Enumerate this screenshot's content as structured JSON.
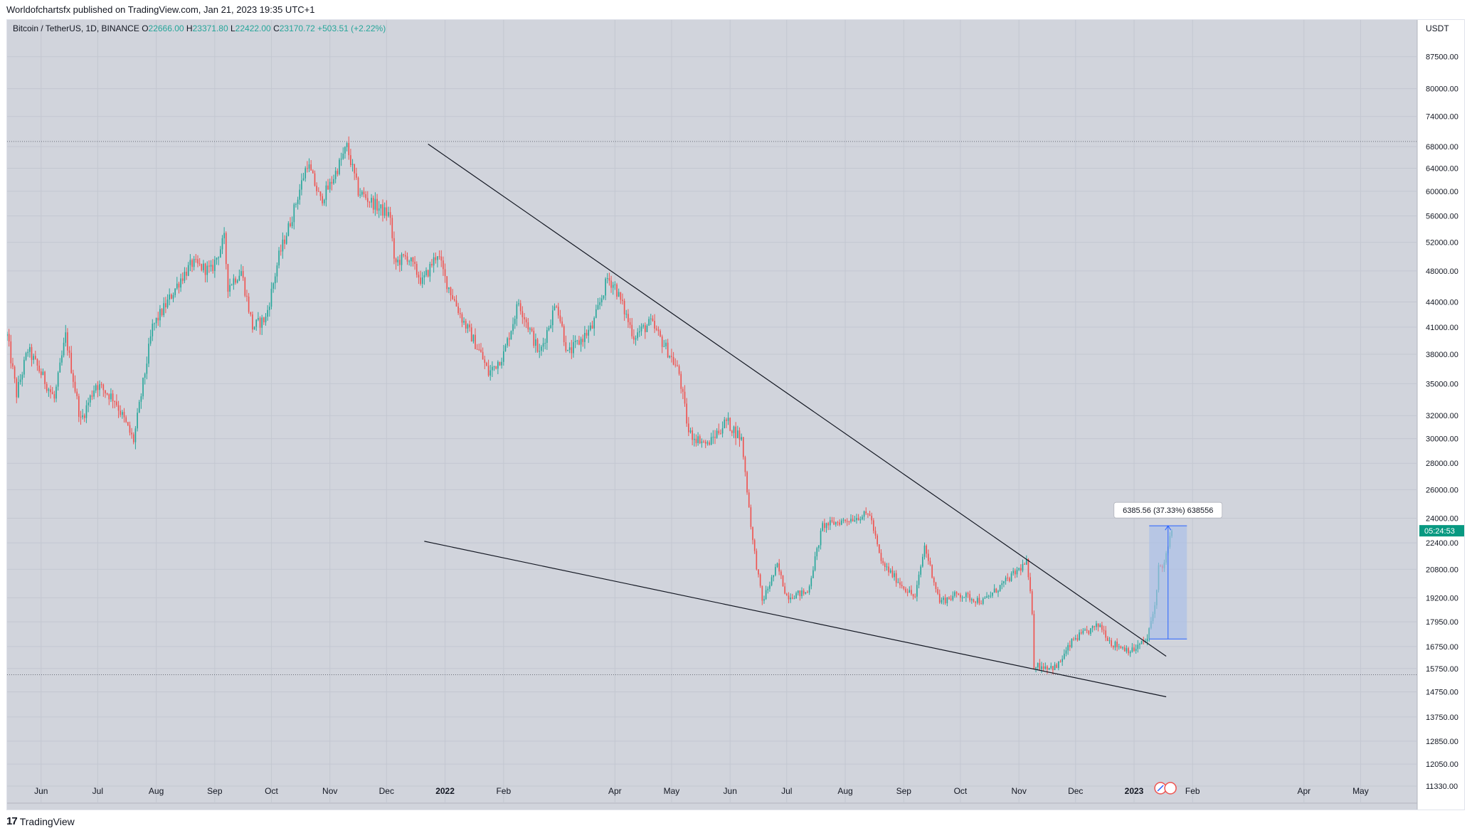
{
  "header": {
    "published_by": "Worldofchartsfx published on TradingView.com, Jan 21, 2023 19:35 UTC+1"
  },
  "footer": {
    "brand": "TradingView",
    "logo_icon": "tradingview-logo-icon"
  },
  "colors": {
    "plot_bg": "#d1d4dc",
    "up": "#26a69a",
    "down": "#ef5350",
    "grid": "#c3c7d1",
    "trendline": "#131722",
    "measure_fill": "#a9bfe8",
    "measure_stroke": "#2962ff",
    "price_label_bg": "#089981"
  },
  "chart_data": {
    "type": "candlestick",
    "symbol_line": {
      "symbol": "Bitcoin / TetherUS, 1D, BINANCE",
      "o_label": "O",
      "open": "22666.00",
      "h_label": "H",
      "high": "23371.80",
      "l_label": "L",
      "low": "22422.00",
      "c_label": "C",
      "close": "23170.72",
      "change": "+503.51 (+2.22%)"
    },
    "currency": "USDT",
    "y_scale": "log",
    "ylim": [
      10800,
      97000
    ],
    "y_ticks": [
      "87500.00",
      "80000.00",
      "74000.00",
      "68000.00",
      "64000.00",
      "60000.00",
      "56000.00",
      "52000.00",
      "48000.00",
      "44000.00",
      "41000.00",
      "38000.00",
      "35000.00",
      "32000.00",
      "30000.00",
      "28000.00",
      "26000.00",
      "24000.00",
      "22400.00",
      "20800.00",
      "19200.00",
      "17950.00",
      "16750.00",
      "15750.00",
      "14750.00",
      "13750.00",
      "12850.00",
      "12050.00",
      "11330.00"
    ],
    "x_range": [
      "2021-05-14",
      "2023-05-31"
    ],
    "x_ticks": [
      {
        "label": "Jun",
        "date": "2021-06-01"
      },
      {
        "label": "Jul",
        "date": "2021-07-01"
      },
      {
        "label": "Aug",
        "date": "2021-08-01"
      },
      {
        "label": "Sep",
        "date": "2021-09-01"
      },
      {
        "label": "Oct",
        "date": "2021-10-01"
      },
      {
        "label": "Nov",
        "date": "2021-11-01"
      },
      {
        "label": "Dec",
        "date": "2021-12-01"
      },
      {
        "label": "2022",
        "date": "2022-01-01",
        "bold": true
      },
      {
        "label": "Feb",
        "date": "2022-02-01"
      },
      {
        "label": "Apr",
        "date": "2022-04-01"
      },
      {
        "label": "May",
        "date": "2022-05-01"
      },
      {
        "label": "Jun",
        "date": "2022-06-01"
      },
      {
        "label": "Jul",
        "date": "2022-07-01"
      },
      {
        "label": "Aug",
        "date": "2022-08-01"
      },
      {
        "label": "Sep",
        "date": "2022-09-01"
      },
      {
        "label": "Oct",
        "date": "2022-10-01"
      },
      {
        "label": "Nov",
        "date": "2022-11-01"
      },
      {
        "label": "Dec",
        "date": "2022-12-01"
      },
      {
        "label": "2023",
        "date": "2023-01-01",
        "bold": true
      },
      {
        "label": "Feb",
        "date": "2023-02-01"
      },
      {
        "label": "Apr",
        "date": "2023-04-01"
      },
      {
        "label": "May",
        "date": "2023-05-01"
      }
    ],
    "price_path": [
      [
        "2021-05-14",
        40000
      ],
      [
        "2021-05-19",
        34000
      ],
      [
        "2021-05-25",
        38500
      ],
      [
        "2021-06-01",
        36000
      ],
      [
        "2021-06-08",
        33500
      ],
      [
        "2021-06-14",
        40000
      ],
      [
        "2021-06-22",
        31500
      ],
      [
        "2021-06-30",
        35000
      ],
      [
        "2021-07-10",
        33500
      ],
      [
        "2021-07-20",
        29800
      ],
      [
        "2021-07-25",
        35000
      ],
      [
        "2021-07-30",
        41000
      ],
      [
        "2021-08-07",
        44000
      ],
      [
        "2021-08-14",
        47000
      ],
      [
        "2021-08-20",
        49000
      ],
      [
        "2021-08-30",
        48000
      ],
      [
        "2021-09-06",
        52500
      ],
      [
        "2021-09-08",
        46000
      ],
      [
        "2021-09-15",
        48000
      ],
      [
        "2021-09-21",
        41000
      ],
      [
        "2021-09-28",
        42000
      ],
      [
        "2021-10-05",
        50000
      ],
      [
        "2021-10-12",
        56000
      ],
      [
        "2021-10-20",
        65000
      ],
      [
        "2021-10-27",
        58500
      ],
      [
        "2021-11-01",
        61000
      ],
      [
        "2021-11-10",
        68000
      ],
      [
        "2021-11-16",
        60000
      ],
      [
        "2021-11-20",
        59000
      ],
      [
        "2021-11-28",
        57000
      ],
      [
        "2021-12-03",
        56000
      ],
      [
        "2021-12-05",
        49000
      ],
      [
        "2021-12-12",
        50000
      ],
      [
        "2021-12-20",
        46500
      ],
      [
        "2021-12-28",
        50500
      ],
      [
        "2022-01-01",
        47000
      ],
      [
        "2022-01-10",
        42000
      ],
      [
        "2022-01-20",
        38000
      ],
      [
        "2022-01-24",
        36000
      ],
      [
        "2022-02-01",
        38000
      ],
      [
        "2022-02-09",
        44000
      ],
      [
        "2022-02-20",
        38000
      ],
      [
        "2022-03-01",
        44000
      ],
      [
        "2022-03-07",
        38000
      ],
      [
        "2022-03-20",
        41000
      ],
      [
        "2022-03-28",
        47000
      ],
      [
        "2022-04-01",
        46000
      ],
      [
        "2022-04-11",
        40000
      ],
      [
        "2022-04-20",
        41500
      ],
      [
        "2022-04-30",
        38000
      ],
      [
        "2022-05-05",
        36000
      ],
      [
        "2022-05-10",
        30500
      ],
      [
        "2022-05-20",
        29500
      ],
      [
        "2022-05-30",
        31500
      ],
      [
        "2022-06-07",
        30000
      ],
      [
        "2022-06-13",
        22500
      ],
      [
        "2022-06-18",
        19000
      ],
      [
        "2022-06-26",
        21000
      ],
      [
        "2022-07-01",
        19300
      ],
      [
        "2022-07-12",
        19500
      ],
      [
        "2022-07-20",
        23500
      ],
      [
        "2022-07-30",
        23800
      ],
      [
        "2022-08-14",
        24300
      ],
      [
        "2022-08-20",
        21200
      ],
      [
        "2022-08-30",
        20000
      ],
      [
        "2022-09-07",
        19200
      ],
      [
        "2022-09-12",
        22200
      ],
      [
        "2022-09-20",
        19000
      ],
      [
        "2022-09-30",
        19400
      ],
      [
        "2022-10-13",
        19000
      ],
      [
        "2022-10-25",
        20100
      ],
      [
        "2022-11-05",
        21200
      ],
      [
        "2022-11-08",
        18500
      ],
      [
        "2022-11-09",
        15900
      ],
      [
        "2022-11-21",
        15800
      ],
      [
        "2022-11-30",
        17100
      ],
      [
        "2022-12-14",
        17800
      ],
      [
        "2022-12-20",
        16900
      ],
      [
        "2022-12-31",
        16550
      ],
      [
        "2023-01-08",
        17100
      ],
      [
        "2023-01-12",
        18800
      ],
      [
        "2023-01-14",
        20900
      ],
      [
        "2023-01-17",
        21100
      ],
      [
        "2023-01-21",
        23170
      ]
    ],
    "reference_lines": [
      {
        "name": "top-horizontal",
        "price": 69000
      },
      {
        "name": "bottom-horizontal",
        "price": 15480
      }
    ],
    "trendlines": [
      {
        "name": "upper-trendline",
        "points": [
          [
            "2021-12-23",
            68500
          ],
          [
            "2023-01-18",
            16300
          ]
        ]
      },
      {
        "name": "lower-trendline",
        "points": [
          [
            "2021-12-21",
            22500
          ],
          [
            "2023-01-18",
            14550
          ]
        ]
      }
    ],
    "measurement": {
      "label": "6385.56 (37.33%) 638556",
      "from": [
        "2023-01-09",
        17110
      ],
      "to": [
        "2023-01-29",
        23495
      ]
    },
    "last_price_label": "05:24:53",
    "last_price": 23170.72
  }
}
